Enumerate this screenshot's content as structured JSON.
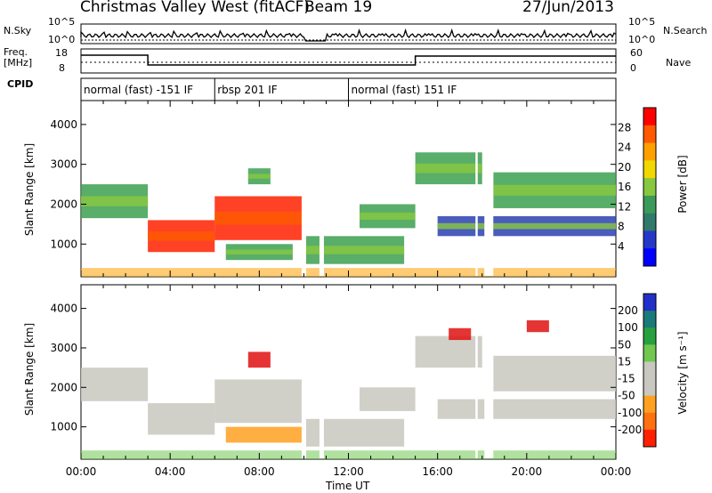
{
  "header": {
    "station": "Christmas Valley West (fitACF)",
    "beam": "Beam 19",
    "date": "27/Jun/2013"
  },
  "top_panel": {
    "nsky_label": "N.Sky",
    "nsearch_label": "N.Search",
    "left_tick_top": "10^5",
    "left_tick_bottom": "10^0",
    "right_tick_top": "10^5",
    "right_tick_bottom": "10^0",
    "freq_label_line1": "Freq.",
    "freq_label_line2": "[MHz]",
    "freq_tick_top": "18",
    "freq_tick_bottom": "8",
    "nave_label": "Nave",
    "nave_tick_top": "60",
    "nave_tick_bottom": "0",
    "cpid_label": "CPID",
    "cpid_segments": [
      {
        "label": "normal (fast) -151 IF",
        "start": 0.0,
        "end": 6.0
      },
      {
        "label": "rbsp 201 IF",
        "start": 6.0,
        "end": 12.0
      },
      {
        "label": "normal (fast) 151 IF",
        "start": 12.0,
        "end": 24.0
      }
    ]
  },
  "chart_data": [
    {
      "type": "heatmap",
      "panel": "power",
      "ylabel": "Slant Range [km]",
      "xlabel": "",
      "xlim": [
        0,
        24
      ],
      "ylim": [
        180,
        4600
      ],
      "yticks": [
        "1000",
        "2000",
        "3000",
        "4000"
      ],
      "colorbar_label": "Power [dB]",
      "colorbar_ticks": [
        "28",
        "24",
        "20",
        "16",
        "12",
        "8",
        "4"
      ],
      "colorbar_colors": [
        "#ff0000",
        "#ff5a00",
        "#ffa000",
        "#f0d800",
        "#88c840",
        "#3c9a58",
        "#2f7a6a",
        "#2638c8",
        "#0000ff"
      ],
      "bands": [
        {
          "x0": 0.0,
          "x1": 3.0,
          "y0": 1650,
          "y1": 2500,
          "level": "medium"
        },
        {
          "x0": 3.0,
          "x1": 6.0,
          "y0": 800,
          "y1": 1600,
          "level": "high"
        },
        {
          "x0": 6.0,
          "x1": 10.0,
          "y0": 1100,
          "y1": 2200,
          "level": "high"
        },
        {
          "x0": 6.5,
          "x1": 9.5,
          "y0": 600,
          "y1": 1000,
          "level": "medium"
        },
        {
          "x0": 7.5,
          "x1": 8.5,
          "y0": 2500,
          "y1": 2900,
          "level": "medium"
        },
        {
          "x0": 10.0,
          "x1": 14.5,
          "y0": 500,
          "y1": 1200,
          "level": "medium"
        },
        {
          "x0": 12.5,
          "x1": 15.0,
          "y0": 1400,
          "y1": 2000,
          "level": "medium"
        },
        {
          "x0": 15.0,
          "x1": 18.0,
          "y0": 2500,
          "y1": 3300,
          "level": "medium"
        },
        {
          "x0": 16.0,
          "x1": 24.0,
          "y0": 1200,
          "y1": 1700,
          "level": "low"
        },
        {
          "x0": 18.5,
          "x1": 24.0,
          "y0": 1900,
          "y1": 2800,
          "level": "medium"
        }
      ]
    },
    {
      "type": "heatmap",
      "panel": "velocity",
      "ylabel": "Slant Range [km]",
      "xlabel": "Time UT",
      "xlim": [
        0,
        24
      ],
      "ylim": [
        180,
        4600
      ],
      "xticks": [
        "00:00",
        "04:00",
        "08:00",
        "12:00",
        "16:00",
        "20:00",
        "00:00"
      ],
      "yticks": [
        "1000",
        "2000",
        "3000",
        "4000"
      ],
      "colorbar_label": "Velocity [m s⁻¹]",
      "colorbar_ticks": [
        "200",
        "100",
        "50",
        "15",
        "-15",
        "-50",
        "-100",
        "-200"
      ],
      "colorbar_colors": [
        "#2030c8",
        "#1a7a7a",
        "#28a040",
        "#70c850",
        "#c8c8c0",
        "#c8c8c0",
        "#ffa020",
        "#ff7010",
        "#ff2000"
      ],
      "bands": [
        {
          "x0": 0.0,
          "x1": 3.0,
          "y0": 1650,
          "y1": 2500,
          "level": "grey"
        },
        {
          "x0": 3.0,
          "x1": 6.0,
          "y0": 800,
          "y1": 1600,
          "level": "grey"
        },
        {
          "x0": 6.0,
          "x1": 10.0,
          "y0": 1100,
          "y1": 2200,
          "level": "grey"
        },
        {
          "x0": 6.5,
          "x1": 10.0,
          "y0": 600,
          "y1": 1000,
          "level": "orange"
        },
        {
          "x0": 7.5,
          "x1": 8.5,
          "y0": 2500,
          "y1": 2900,
          "level": "red"
        },
        {
          "x0": 10.0,
          "x1": 14.5,
          "y0": 500,
          "y1": 1200,
          "level": "grey"
        },
        {
          "x0": 12.5,
          "x1": 15.0,
          "y0": 1400,
          "y1": 2000,
          "level": "grey"
        },
        {
          "x0": 15.0,
          "x1": 18.0,
          "y0": 2500,
          "y1": 3300,
          "level": "grey"
        },
        {
          "x0": 16.0,
          "x1": 24.0,
          "y0": 1200,
          "y1": 1700,
          "level": "grey"
        },
        {
          "x0": 18.5,
          "x1": 24.0,
          "y0": 1900,
          "y1": 2800,
          "level": "grey"
        },
        {
          "x0": 16.5,
          "x1": 17.5,
          "y0": 3200,
          "y1": 3500,
          "level": "red"
        },
        {
          "x0": 20.0,
          "x1": 21.0,
          "y0": 3400,
          "y1": 3700,
          "level": "red"
        }
      ]
    }
  ]
}
